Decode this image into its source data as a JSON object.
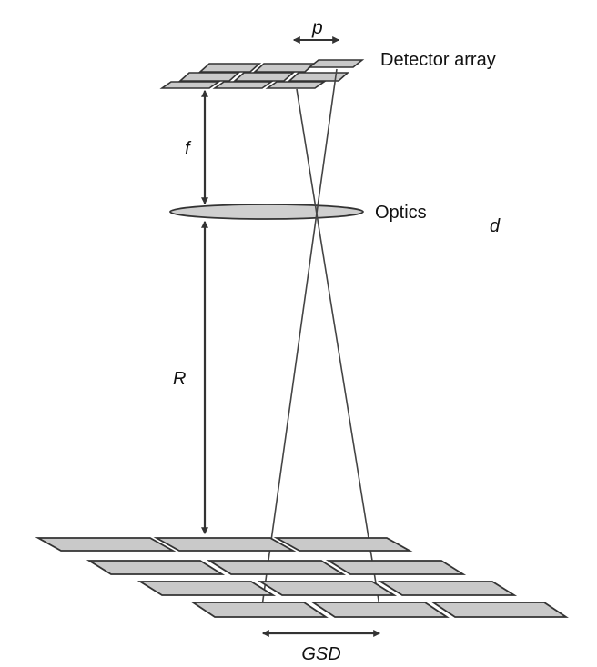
{
  "labels": {
    "detector_array": "Detector array",
    "optics": "Optics",
    "pixel_pitch": "p",
    "focal_length": "f",
    "range": "R",
    "aperture": "d",
    "gsd": "GSD"
  },
  "colors": {
    "tile_fill": "#c9c9c9",
    "stroke": "#333333",
    "ray": "#444444",
    "lens_fill": "#cfcfcf"
  }
}
